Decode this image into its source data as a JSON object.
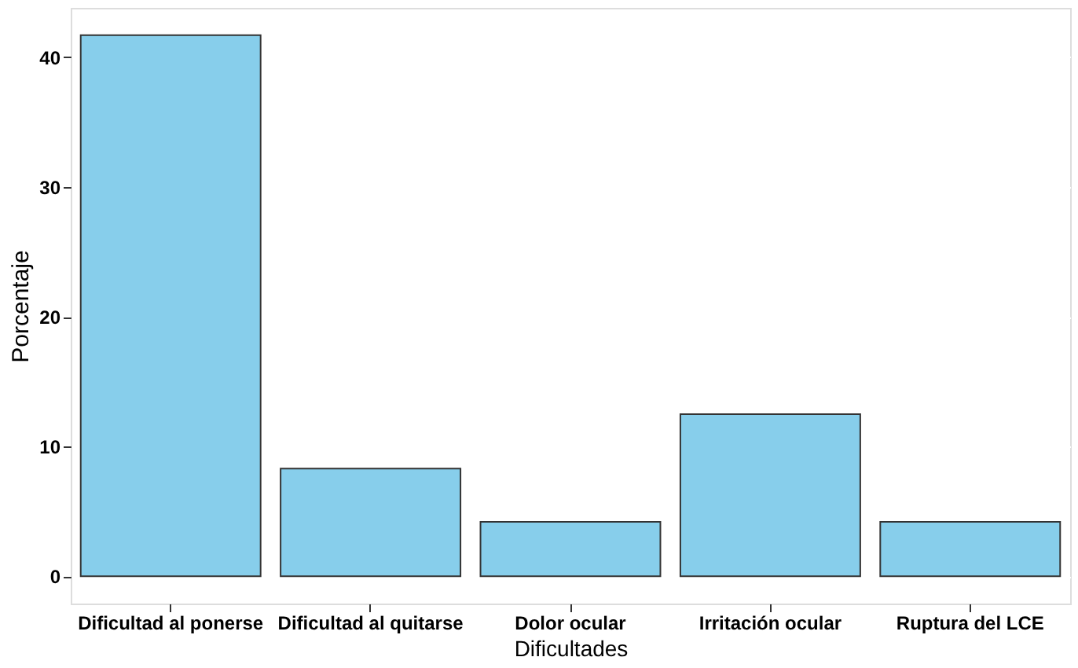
{
  "chart_data": {
    "type": "bar",
    "xlabel": "Dificultades",
    "ylabel": "Porcentaje",
    "categories": [
      "Dificultad al ponerse",
      "Dificultad al quitarse",
      "Dolor ocular",
      "Irritación ocular",
      "Ruptura del LCE"
    ],
    "values": [
      41.7,
      8.3,
      4.2,
      12.5,
      4.2
    ],
    "color": "#87ceeb",
    "ylim": [
      -2.1,
      43.8
    ],
    "yticks": [
      0,
      10,
      20,
      30,
      40
    ],
    "grid": "y"
  }
}
